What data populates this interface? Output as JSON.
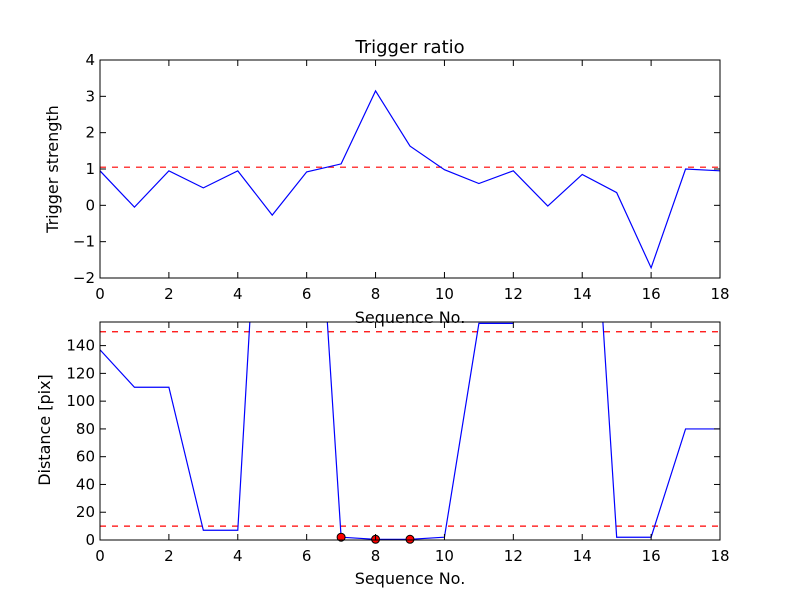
{
  "chart_data": [
    {
      "type": "line",
      "title": "Trigger ratio",
      "xlabel": "Sequence No.",
      "ylabel": "Trigger strength",
      "xlim": [
        0,
        18
      ],
      "ylim": [
        -2,
        4
      ],
      "xticks": [
        0,
        2,
        4,
        6,
        8,
        10,
        12,
        14,
        16,
        18
      ],
      "yticks": [
        -2,
        -1,
        0,
        1,
        2,
        3,
        4
      ],
      "ytick_labels": [
        "−2",
        "−1",
        "0",
        "1",
        "2",
        "3",
        "4"
      ],
      "grid": false,
      "series": [
        {
          "color": "#0000ff",
          "x": [
            0,
            1,
            2,
            3,
            4,
            5,
            6,
            7,
            8,
            9,
            10,
            11,
            12,
            13,
            14,
            15,
            16,
            17,
            18
          ],
          "y": [
            0.95,
            -0.05,
            0.95,
            0.48,
            0.95,
            -0.27,
            0.92,
            1.14,
            3.15,
            1.63,
            0.98,
            0.6,
            0.95,
            -0.02,
            0.85,
            0.35,
            -1.72,
            1.0,
            0.95
          ]
        }
      ],
      "hlines": [
        {
          "y": 1.05,
          "color": "#ff0000",
          "style": "dashed"
        }
      ]
    },
    {
      "type": "line",
      "title": "",
      "xlabel": "Sequence No.",
      "ylabel": "Distance [pix]",
      "xlim": [
        0,
        18
      ],
      "ylim": [
        0,
        157
      ],
      "xticks": [
        0,
        2,
        4,
        6,
        8,
        10,
        12,
        14,
        16,
        18
      ],
      "yticks": [
        0,
        20,
        40,
        60,
        80,
        100,
        120,
        140
      ],
      "ytick_labels": [
        "0",
        "20",
        "40",
        "60",
        "80",
        "100",
        "120",
        "140"
      ],
      "grid": false,
      "series": [
        {
          "color": "#0000ff",
          "segments": [
            {
              "x": [
                0,
                1,
                2,
                3,
                4,
                4.35
              ],
              "y": [
                137,
                110,
                110,
                7,
                7,
                157
              ]
            },
            {
              "x": [
                6.6,
                7,
                8,
                9,
                10,
                11,
                12
              ],
              "y": [
                157,
                2,
                0.5,
                0.5,
                2,
                156,
                156
              ]
            },
            {
              "x": [
                14.6,
                15,
                16,
                17,
                18
              ],
              "y": [
                157,
                2,
                2,
                80,
                80
              ]
            }
          ]
        }
      ],
      "markers": {
        "color": "#ff0000",
        "x": [
          7,
          8,
          9
        ],
        "y": [
          2,
          0.5,
          0.5
        ]
      },
      "hlines": [
        {
          "y": 150,
          "color": "#ff0000",
          "style": "dashed"
        },
        {
          "y": 10,
          "color": "#ff0000",
          "style": "dashed"
        }
      ]
    }
  ]
}
